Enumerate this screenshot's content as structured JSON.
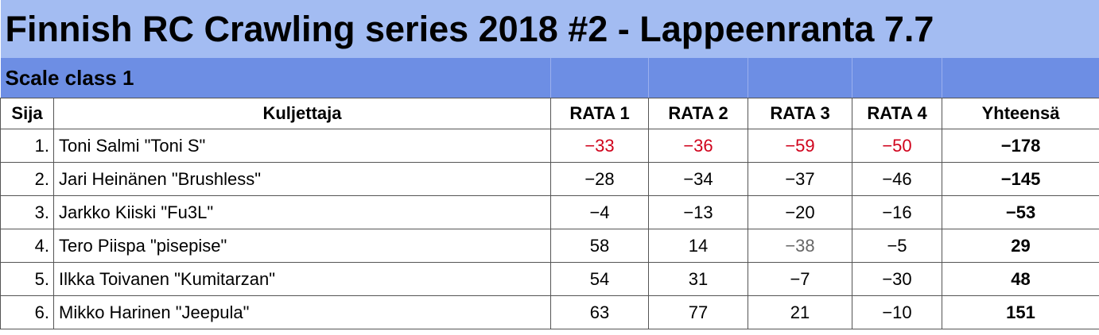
{
  "title": "Finnish RC Crawling series 2018 #2 - Lappeenranta 7.7",
  "class_label": "Scale class 1",
  "headers": {
    "position": "Sija",
    "driver": "Kuljettaja",
    "rata1": "RATA 1",
    "rata2": "RATA 2",
    "rata3": "RATA 3",
    "rata4": "RATA 4",
    "total": "Yhteensä"
  },
  "rows": [
    {
      "pos": "1.",
      "name": "Toni Salmi \"Toni S\"",
      "rata1": "−33",
      "rata2": "−36",
      "rata3": "−59",
      "rata4": "−50",
      "total": "−178"
    },
    {
      "pos": "2.",
      "name": "Jari Heinänen \"Brushless\"",
      "rata1": "−28",
      "rata2": "−34",
      "rata3": "−37",
      "rata4": "−46",
      "total": "−145"
    },
    {
      "pos": "3.",
      "name": "Jarkko Kiiski \"Fu3L\"",
      "rata1": "−4",
      "rata2": "−13",
      "rata3": "−20",
      "rata4": "−16",
      "total": "−53"
    },
    {
      "pos": "4.",
      "name": "Tero Piispa \"pisepise\"",
      "rata1": "58",
      "rata2": "14",
      "rata3": "−38",
      "rata4": "−5",
      "total": "29"
    },
    {
      "pos": "5.",
      "name": "Ilkka Toivanen \"Kumitarzan\"",
      "rata1": "54",
      "rata2": "31",
      "rata3": "−7",
      "rata4": "−30",
      "total": "48"
    },
    {
      "pos": "6.",
      "name": "Mikko Harinen \"Jeepula\"",
      "rata1": "63",
      "rata2": "77",
      "rata3": "21",
      "rata4": "−10",
      "total": "151"
    }
  ],
  "colors": {
    "title_bg": "#a3bcf2",
    "class_bg": "#6d8ee4",
    "best_value": "#d0021b",
    "muted_value": "#666666"
  }
}
